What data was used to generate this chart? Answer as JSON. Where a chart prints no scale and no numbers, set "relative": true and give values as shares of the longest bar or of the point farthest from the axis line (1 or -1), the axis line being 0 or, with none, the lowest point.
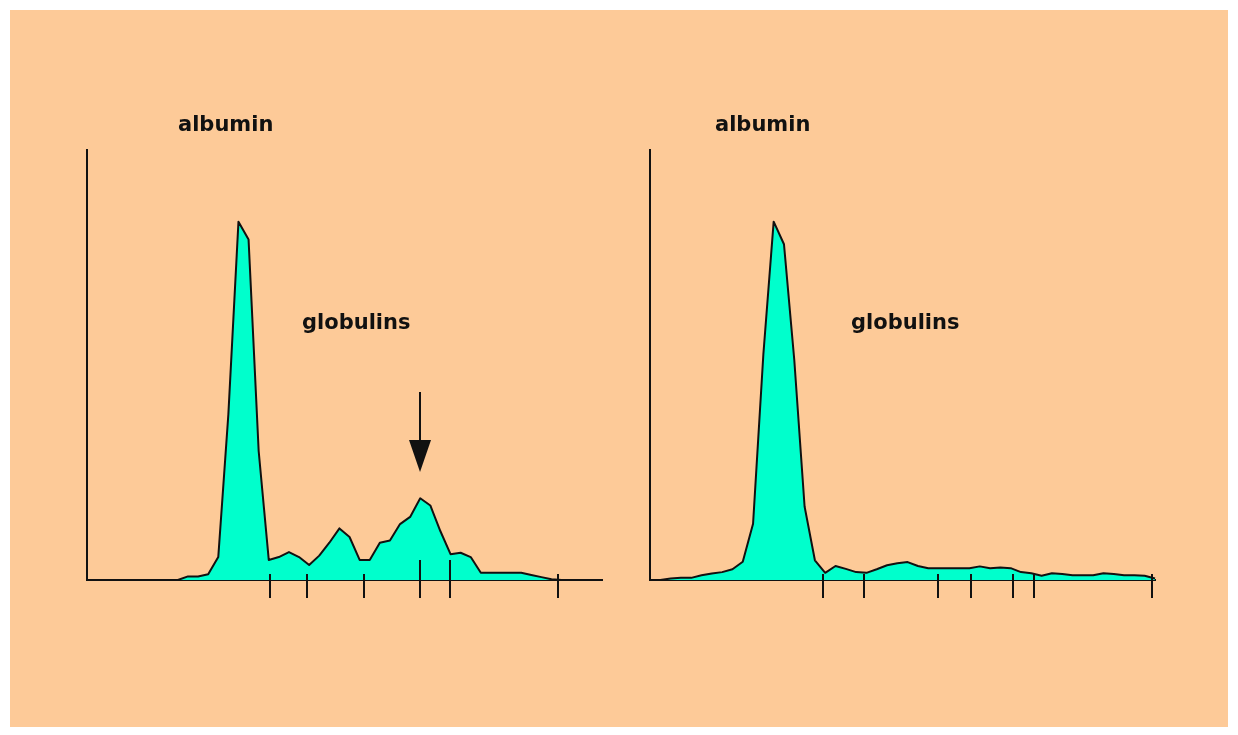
{
  "chart_data": [
    {
      "type": "area",
      "relative": true,
      "color": "#00ffcc",
      "annotations": [
        "albumin",
        "globulins"
      ],
      "categories": [
        null,
        null,
        null,
        null,
        null,
        null,
        null,
        null,
        null,
        null,
        null,
        null,
        null,
        null,
        null,
        null,
        null,
        null,
        null,
        null,
        null,
        null,
        null,
        null,
        null,
        null,
        null,
        null,
        null,
        null,
        null,
        null,
        null,
        null,
        null,
        null,
        null,
        null,
        null,
        null,
        null,
        null,
        null,
        null,
        null,
        null,
        null,
        null,
        null,
        null,
        null,
        null
      ],
      "values": [
        0,
        0,
        0,
        0,
        0,
        0,
        0,
        0,
        0,
        0,
        0.01,
        0.01,
        0.016,
        0.064,
        0.463,
        1,
        0.95,
        0.36,
        0.056,
        0.064,
        0.078,
        0.064,
        0.042,
        0.068,
        0.104,
        0.144,
        0.12,
        0.056,
        0.056,
        0.104,
        0.11,
        0.156,
        0.176,
        0.228,
        0.208,
        0.136,
        0.072,
        0.076,
        0.064,
        0.02,
        0.02,
        0.02,
        0.02,
        0.02,
        0.014,
        0.008,
        0.002,
        0,
        0,
        0,
        0,
        0
      ]
    },
    {
      "type": "area",
      "relative": true,
      "color": "#00ffcc",
      "annotations": [
        "albumin",
        "globulins"
      ],
      "categories": [
        null,
        null,
        null,
        null,
        null,
        null,
        null,
        null,
        null,
        null,
        null,
        null,
        null,
        null,
        null,
        null,
        null,
        null,
        null,
        null,
        null,
        null,
        null,
        null,
        null,
        null,
        null,
        null,
        null,
        null,
        null,
        null,
        null,
        null,
        null,
        null,
        null,
        null,
        null,
        null,
        null,
        null,
        null,
        null,
        null,
        null,
        null,
        null,
        null,
        null
      ],
      "values": [
        0,
        0,
        0.004,
        0.006,
        0.006,
        0.013,
        0.018,
        0.022,
        0.03,
        0.051,
        0.157,
        0.63,
        1,
        0.937,
        0.614,
        0.205,
        0.055,
        0.02,
        0.039,
        0.031,
        0.022,
        0.02,
        0.03,
        0.041,
        0.047,
        0.05,
        0.039,
        0.033,
        0.033,
        0.033,
        0.033,
        0.033,
        0.038,
        0.033,
        0.035,
        0.033,
        0.022,
        0.019,
        0.012,
        0.019,
        0.017,
        0.013,
        0.013,
        0.013,
        0.019,
        0.017,
        0.013,
        0.013,
        0.012,
        0.004
      ]
    }
  ]
}
